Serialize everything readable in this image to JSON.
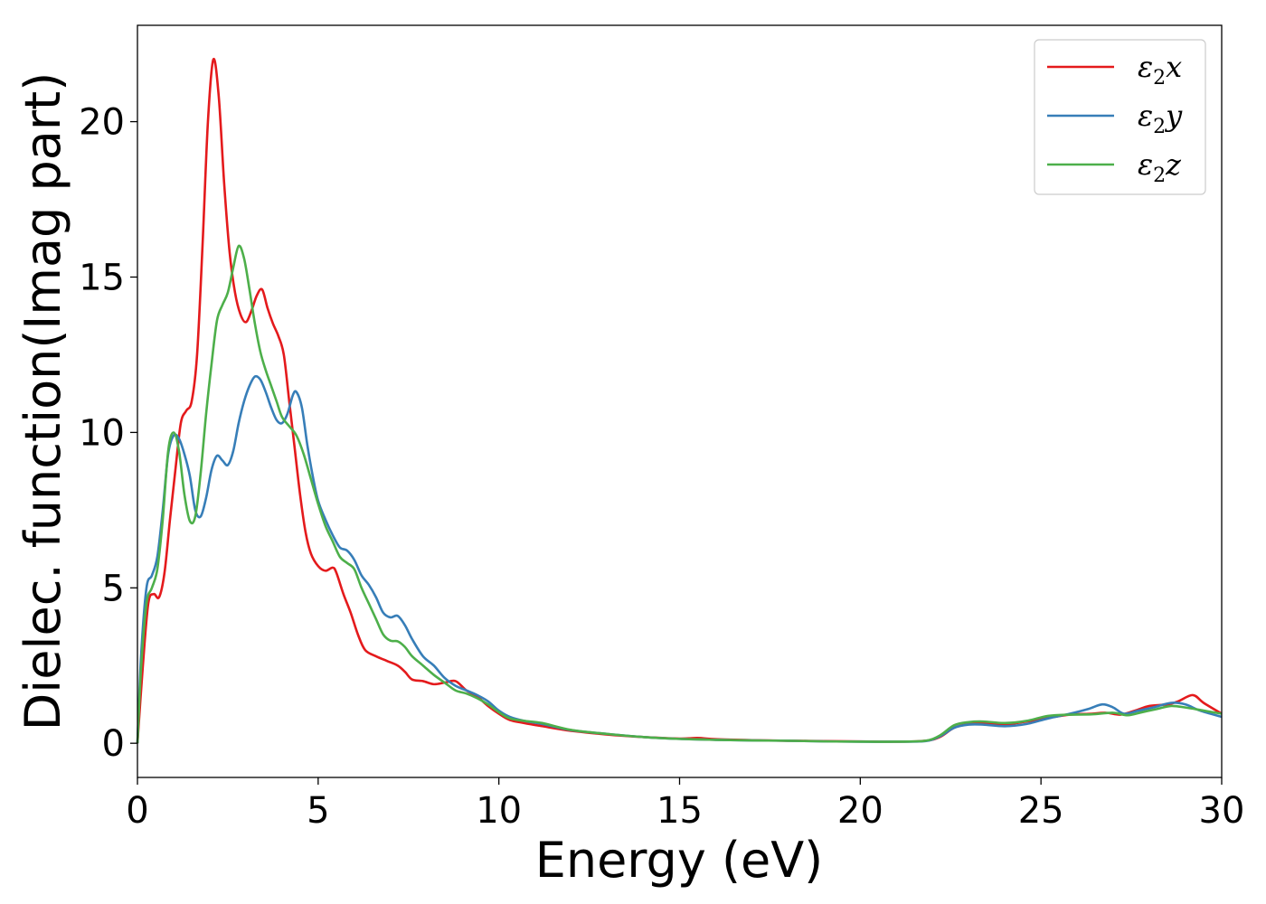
{
  "chart_data": {
    "type": "line",
    "xlabel": "Energy (eV)",
    "ylabel": "Dielec. function(Imag part)",
    "xlim": [
      0,
      30
    ],
    "ylim": [
      -1.1,
      23.1
    ],
    "xticks": [
      0,
      5,
      10,
      15,
      20,
      25,
      30
    ],
    "yticks": [
      0,
      5,
      10,
      15,
      20
    ],
    "grid": false,
    "legend_position": "top-right",
    "series": [
      {
        "name": "ε2x",
        "legend": {
          "base": "ε",
          "sub": "2",
          "var": "x"
        },
        "color": "#e41a1c",
        "points": [
          [
            0,
            0
          ],
          [
            0.15,
            2.5
          ],
          [
            0.3,
            4.5
          ],
          [
            0.45,
            4.8
          ],
          [
            0.6,
            4.7
          ],
          [
            0.75,
            5.5
          ],
          [
            0.9,
            7.2
          ],
          [
            1.05,
            8.8
          ],
          [
            1.2,
            10.3
          ],
          [
            1.35,
            10.7
          ],
          [
            1.5,
            11.0
          ],
          [
            1.65,
            12.5
          ],
          [
            1.8,
            16
          ],
          [
            1.95,
            20
          ],
          [
            2.1,
            22.0
          ],
          [
            2.25,
            20.8
          ],
          [
            2.4,
            18
          ],
          [
            2.55,
            15.8
          ],
          [
            2.7,
            14.5
          ],
          [
            2.85,
            13.8
          ],
          [
            3.0,
            13.55
          ],
          [
            3.15,
            13.9
          ],
          [
            3.3,
            14.4
          ],
          [
            3.45,
            14.6
          ],
          [
            3.6,
            14.0
          ],
          [
            3.75,
            13.5
          ],
          [
            3.9,
            13.1
          ],
          [
            4.05,
            12.5
          ],
          [
            4.2,
            11.0
          ],
          [
            4.35,
            9.5
          ],
          [
            4.5,
            8.0
          ],
          [
            4.65,
            6.8
          ],
          [
            4.8,
            6.1
          ],
          [
            5.0,
            5.7
          ],
          [
            5.2,
            5.55
          ],
          [
            5.4,
            5.65
          ],
          [
            5.5,
            5.5
          ],
          [
            5.7,
            4.8
          ],
          [
            5.9,
            4.2
          ],
          [
            6.1,
            3.5
          ],
          [
            6.3,
            3.0
          ],
          [
            6.6,
            2.8
          ],
          [
            6.9,
            2.65
          ],
          [
            7.2,
            2.5
          ],
          [
            7.4,
            2.3
          ],
          [
            7.6,
            2.05
          ],
          [
            7.9,
            2.0
          ],
          [
            8.2,
            1.9
          ],
          [
            8.5,
            1.95
          ],
          [
            8.8,
            2.0
          ],
          [
            9.1,
            1.7
          ],
          [
            9.4,
            1.5
          ],
          [
            9.7,
            1.2
          ],
          [
            10.0,
            0.95
          ],
          [
            10.3,
            0.75
          ],
          [
            10.7,
            0.65
          ],
          [
            11.2,
            0.55
          ],
          [
            12,
            0.4
          ],
          [
            13,
            0.28
          ],
          [
            14,
            0.2
          ],
          [
            15,
            0.15
          ],
          [
            15.5,
            0.17
          ],
          [
            16,
            0.13
          ],
          [
            17,
            0.1
          ],
          [
            18,
            0.08
          ],
          [
            19,
            0.07
          ],
          [
            20,
            0.06
          ],
          [
            21,
            0.05
          ],
          [
            21.8,
            0.08
          ],
          [
            22.2,
            0.2
          ],
          [
            22.6,
            0.5
          ],
          [
            23.0,
            0.62
          ],
          [
            23.4,
            0.65
          ],
          [
            24.0,
            0.6
          ],
          [
            24.6,
            0.7
          ],
          [
            25.2,
            0.82
          ],
          [
            25.8,
            0.92
          ],
          [
            26.4,
            0.95
          ],
          [
            26.8,
            0.98
          ],
          [
            27.2,
            0.92
          ],
          [
            27.6,
            1.05
          ],
          [
            28.0,
            1.2
          ],
          [
            28.5,
            1.25
          ],
          [
            28.8,
            1.35
          ],
          [
            29.2,
            1.55
          ],
          [
            29.5,
            1.3
          ],
          [
            30,
            0.95
          ]
        ]
      },
      {
        "name": "ε2y",
        "legend": {
          "base": "ε",
          "sub": "2",
          "var": "y"
        },
        "color": "#377eb8",
        "points": [
          [
            0,
            0
          ],
          [
            0.1,
            2.8
          ],
          [
            0.25,
            5.0
          ],
          [
            0.4,
            5.4
          ],
          [
            0.55,
            6.0
          ],
          [
            0.7,
            7.5
          ],
          [
            0.85,
            9.3
          ],
          [
            1.0,
            9.9
          ],
          [
            1.15,
            9.8
          ],
          [
            1.3,
            9.3
          ],
          [
            1.45,
            8.6
          ],
          [
            1.6,
            7.5
          ],
          [
            1.75,
            7.3
          ],
          [
            1.9,
            7.9
          ],
          [
            2.05,
            8.8
          ],
          [
            2.2,
            9.25
          ],
          [
            2.35,
            9.1
          ],
          [
            2.5,
            8.95
          ],
          [
            2.65,
            9.4
          ],
          [
            2.8,
            10.3
          ],
          [
            2.95,
            11.0
          ],
          [
            3.1,
            11.5
          ],
          [
            3.25,
            11.8
          ],
          [
            3.4,
            11.7
          ],
          [
            3.55,
            11.3
          ],
          [
            3.7,
            10.8
          ],
          [
            3.85,
            10.4
          ],
          [
            4.0,
            10.3
          ],
          [
            4.15,
            10.6
          ],
          [
            4.3,
            11.2
          ],
          [
            4.4,
            11.3
          ],
          [
            4.55,
            10.8
          ],
          [
            4.7,
            9.6
          ],
          [
            4.85,
            8.6
          ],
          [
            5.0,
            7.8
          ],
          [
            5.2,
            7.2
          ],
          [
            5.4,
            6.7
          ],
          [
            5.6,
            6.3
          ],
          [
            5.8,
            6.2
          ],
          [
            6.0,
            5.9
          ],
          [
            6.2,
            5.4
          ],
          [
            6.4,
            5.1
          ],
          [
            6.6,
            4.7
          ],
          [
            6.8,
            4.2
          ],
          [
            7.0,
            4.05
          ],
          [
            7.2,
            4.1
          ],
          [
            7.4,
            3.8
          ],
          [
            7.6,
            3.35
          ],
          [
            7.9,
            2.8
          ],
          [
            8.2,
            2.5
          ],
          [
            8.5,
            2.1
          ],
          [
            8.8,
            1.85
          ],
          [
            9.1,
            1.7
          ],
          [
            9.4,
            1.55
          ],
          [
            9.7,
            1.35
          ],
          [
            10.0,
            1.05
          ],
          [
            10.3,
            0.85
          ],
          [
            10.7,
            0.72
          ],
          [
            11.2,
            0.62
          ],
          [
            12,
            0.42
          ],
          [
            13,
            0.3
          ],
          [
            14,
            0.2
          ],
          [
            15,
            0.14
          ],
          [
            16,
            0.11
          ],
          [
            17,
            0.09
          ],
          [
            18,
            0.08
          ],
          [
            19,
            0.06
          ],
          [
            20,
            0.05
          ],
          [
            21,
            0.05
          ],
          [
            21.8,
            0.07
          ],
          [
            22.2,
            0.22
          ],
          [
            22.6,
            0.5
          ],
          [
            23.0,
            0.6
          ],
          [
            23.4,
            0.6
          ],
          [
            24.0,
            0.55
          ],
          [
            24.6,
            0.62
          ],
          [
            25.2,
            0.8
          ],
          [
            25.8,
            0.95
          ],
          [
            26.3,
            1.1
          ],
          [
            26.7,
            1.25
          ],
          [
            27.0,
            1.15
          ],
          [
            27.3,
            0.95
          ],
          [
            27.7,
            1.05
          ],
          [
            28.1,
            1.15
          ],
          [
            28.6,
            1.3
          ],
          [
            29.0,
            1.25
          ],
          [
            29.4,
            1.05
          ],
          [
            30,
            0.85
          ]
        ]
      },
      {
        "name": "ε2z",
        "legend": {
          "base": "ε",
          "sub": "2",
          "var": "z"
        },
        "color": "#4daf4a",
        "points": [
          [
            0,
            0
          ],
          [
            0.1,
            2.4
          ],
          [
            0.25,
            4.5
          ],
          [
            0.4,
            5.0
          ],
          [
            0.55,
            5.6
          ],
          [
            0.7,
            7.2
          ],
          [
            0.85,
            9.4
          ],
          [
            1.0,
            10.0
          ],
          [
            1.15,
            9.4
          ],
          [
            1.3,
            8.0
          ],
          [
            1.45,
            7.15
          ],
          [
            1.6,
            7.3
          ],
          [
            1.75,
            8.7
          ],
          [
            1.9,
            10.6
          ],
          [
            2.05,
            12.2
          ],
          [
            2.2,
            13.6
          ],
          [
            2.35,
            14.1
          ],
          [
            2.5,
            14.5
          ],
          [
            2.65,
            15.3
          ],
          [
            2.8,
            16.0
          ],
          [
            2.95,
            15.6
          ],
          [
            3.1,
            14.6
          ],
          [
            3.25,
            13.5
          ],
          [
            3.4,
            12.6
          ],
          [
            3.55,
            12.0
          ],
          [
            3.7,
            11.5
          ],
          [
            3.85,
            11.0
          ],
          [
            4.0,
            10.5
          ],
          [
            4.2,
            10.2
          ],
          [
            4.4,
            9.9
          ],
          [
            4.6,
            9.3
          ],
          [
            4.8,
            8.5
          ],
          [
            5.0,
            7.7
          ],
          [
            5.2,
            7.0
          ],
          [
            5.4,
            6.5
          ],
          [
            5.6,
            6.0
          ],
          [
            5.8,
            5.8
          ],
          [
            6.0,
            5.6
          ],
          [
            6.2,
            5.0
          ],
          [
            6.4,
            4.5
          ],
          [
            6.6,
            4.0
          ],
          [
            6.8,
            3.5
          ],
          [
            7.0,
            3.3
          ],
          [
            7.2,
            3.28
          ],
          [
            7.4,
            3.1
          ],
          [
            7.6,
            2.8
          ],
          [
            7.9,
            2.5
          ],
          [
            8.2,
            2.2
          ],
          [
            8.5,
            1.95
          ],
          [
            8.8,
            1.7
          ],
          [
            9.1,
            1.6
          ],
          [
            9.4,
            1.45
          ],
          [
            9.7,
            1.25
          ],
          [
            10.0,
            1.0
          ],
          [
            10.3,
            0.8
          ],
          [
            10.7,
            0.72
          ],
          [
            11.2,
            0.65
          ],
          [
            12,
            0.43
          ],
          [
            13,
            0.3
          ],
          [
            14,
            0.2
          ],
          [
            15,
            0.14
          ],
          [
            16,
            0.11
          ],
          [
            17,
            0.09
          ],
          [
            18,
            0.08
          ],
          [
            19,
            0.06
          ],
          [
            20,
            0.05
          ],
          [
            21,
            0.05
          ],
          [
            21.8,
            0.08
          ],
          [
            22.2,
            0.25
          ],
          [
            22.6,
            0.58
          ],
          [
            23.0,
            0.68
          ],
          [
            23.4,
            0.7
          ],
          [
            24.0,
            0.65
          ],
          [
            24.6,
            0.72
          ],
          [
            25.2,
            0.88
          ],
          [
            25.8,
            0.92
          ],
          [
            26.4,
            0.93
          ],
          [
            27.0,
            0.98
          ],
          [
            27.4,
            0.9
          ],
          [
            27.8,
            1.0
          ],
          [
            28.2,
            1.1
          ],
          [
            28.6,
            1.2
          ],
          [
            29.0,
            1.15
          ],
          [
            29.5,
            1.05
          ],
          [
            30,
            0.95
          ]
        ]
      }
    ]
  }
}
